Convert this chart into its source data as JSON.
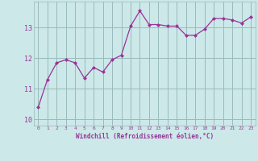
{
  "x": [
    0,
    1,
    2,
    3,
    4,
    5,
    6,
    7,
    8,
    9,
    10,
    11,
    12,
    13,
    14,
    15,
    16,
    17,
    18,
    19,
    20,
    21,
    22,
    23
  ],
  "y": [
    10.4,
    11.3,
    11.85,
    11.95,
    11.85,
    11.35,
    11.7,
    11.55,
    11.95,
    12.1,
    13.05,
    13.55,
    13.1,
    13.1,
    13.05,
    13.05,
    12.75,
    12.75,
    12.95,
    13.3,
    13.3,
    13.25,
    13.15,
    13.35
  ],
  "line_color": "#993399",
  "marker": "D",
  "marker_size": 2,
  "bg_color": "#cce8e8",
  "grid_color": "#99bbbb",
  "xlabel": "Windchill (Refroidissement éolien,°C)",
  "xlabel_color": "#993399",
  "tick_color": "#993399",
  "yticks": [
    10,
    11,
    12,
    13
  ],
  "ylim": [
    9.8,
    13.85
  ],
  "xlim": [
    -0.5,
    23.5
  ],
  "xticks": [
    0,
    1,
    2,
    3,
    4,
    5,
    6,
    7,
    8,
    9,
    10,
    11,
    12,
    13,
    14,
    15,
    16,
    17,
    18,
    19,
    20,
    21,
    22,
    23
  ]
}
